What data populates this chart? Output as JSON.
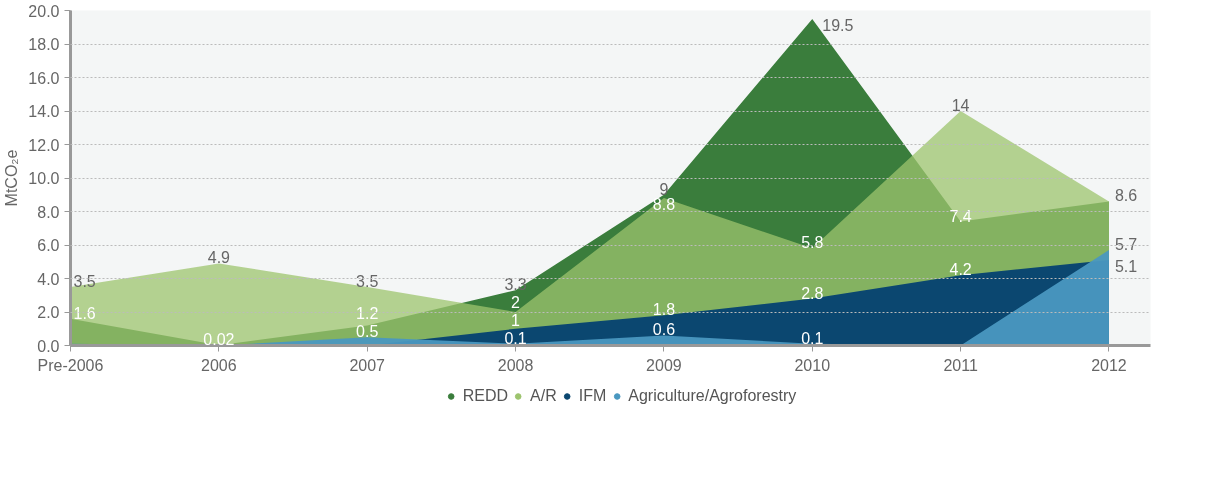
{
  "chart_data": {
    "type": "area",
    "ylabel": "MtCO₂e",
    "categories": [
      "Pre-2006",
      "2006",
      "2007",
      "2008",
      "2009",
      "2010",
      "2011",
      "2012"
    ],
    "series": [
      {
        "name": "REDD",
        "color": "#3a7d3c",
        "values": [
          1.6,
          0.02,
          1.2,
          3.3,
          9,
          19.5,
          7.4,
          8.6
        ],
        "value_labels": [
          "1.6",
          "0.02",
          "1.2",
          "3.3",
          "9",
          "19.5",
          "7.4",
          null
        ]
      },
      {
        "name": "A/R",
        "color": "#9dc46e",
        "values": [
          3.5,
          4.9,
          3.5,
          2,
          8.8,
          5.8,
          14,
          8.6
        ],
        "value_labels": [
          "3.5",
          "4.9",
          "3.5",
          "2",
          "8.8",
          "5.8",
          "14",
          "8.6"
        ]
      },
      {
        "name": "IFM",
        "color": "#0b4770",
        "values": [
          0,
          0,
          0,
          1,
          1.8,
          2.8,
          4.2,
          5.1
        ],
        "value_labels": [
          null,
          null,
          null,
          "1",
          "1.8",
          "2.8",
          "4.2",
          "5.1"
        ]
      },
      {
        "name": "Agriculture/Agroforestry",
        "color": "#4a98c0",
        "values": [
          0.1,
          0,
          0.5,
          0.1,
          0.6,
          0.1,
          0,
          5.7
        ],
        "value_labels": [
          null,
          null,
          "0.5",
          "0.1",
          "0.6",
          "0.1",
          null,
          "5.7"
        ]
      }
    ],
    "ylim": [
      0,
      20
    ],
    "yticks": [
      {
        "value": 0,
        "label": "0.0"
      },
      {
        "value": 2,
        "label": "2.0"
      },
      {
        "value": 4,
        "label": "4.0"
      },
      {
        "value": 6,
        "label": "6.0"
      },
      {
        "value": 8,
        "label": "8.0"
      },
      {
        "value": 10,
        "label": "10.0"
      },
      {
        "value": 12,
        "label": "12.0"
      },
      {
        "value": 14,
        "label": "14.0"
      },
      {
        "value": 16,
        "label": "16.0"
      },
      {
        "value": 18,
        "label": "18.0"
      },
      {
        "value": 20,
        "label": "20.0"
      }
    ],
    "grid": "y",
    "legend": "bottom"
  }
}
